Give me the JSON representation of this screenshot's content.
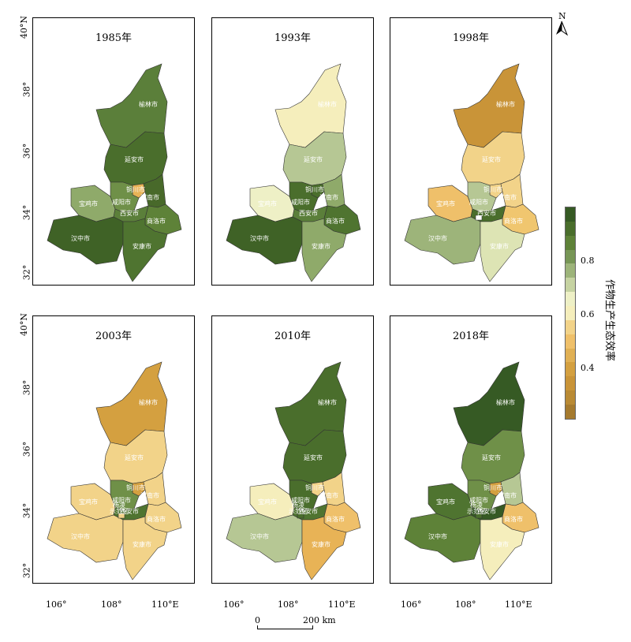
{
  "map": {
    "panels": [
      {
        "title": "1985年",
        "colors": {
          "榆林市": "#5b7f3a",
          "延安市": "#4a6e2c",
          "铜川市": "#e8b356",
          "渭南市": "#48692a",
          "咸阳市": "#6f9048",
          "宝鸡市": "#8faa6a",
          "西安市": "#5b7f3a",
          "商洛市": "#5e8238",
          "汉中市": "#3f6226",
          "安康市": "#4f7430"
        }
      },
      {
        "title": "1993年",
        "colors": {
          "榆林市": "#f5eebc",
          "延安市": "#b6c794",
          "铜川市": "#4a6e2c",
          "渭南市": "#8faa6a",
          "咸阳市": "#4a6e2c",
          "宝鸡市": "#eef0c6",
          "西安市": "#5b7f3a",
          "商洛市": "#4f7430",
          "汉中市": "#3f6226",
          "安康市": "#8faa6a"
        }
      },
      {
        "title": "1998年",
        "colors": {
          "榆林市": "#c99438",
          "延安市": "#f2d389",
          "铜川市": "#f2d389",
          "渭南市": "#f2d389",
          "咸阳市": "#b6c794",
          "宝鸡市": "#efc06a",
          "西安市": "#4a6e2c",
          "商洛市": "#f0c66f",
          "汉中市": "#9db47a",
          "安康市": "#dde4b4",
          "杨凌示范区": "#ffffff"
        }
      },
      {
        "title": "2003年",
        "colors": {
          "榆林市": "#d4a040",
          "延安市": "#f2d389",
          "铜川市": "#d4a040",
          "渭南市": "#f2d389",
          "咸阳市": "#6f9048",
          "宝鸡市": "#f2d389",
          "西安市": "#4f7430",
          "商洛市": "#f2d389",
          "汉中市": "#f2d389",
          "安康市": "#f2d389",
          "杨凌示范区": "#f2d389"
        }
      },
      {
        "title": "2010年",
        "colors": {
          "榆林市": "#4a6e2c",
          "延安市": "#4a6e2c",
          "铜川市": "#f2d389",
          "渭南市": "#f2d389",
          "咸阳市": "#4a6e2c",
          "宝鸡市": "#f5eebc",
          "西安市": "#4f7430",
          "商洛市": "#efc06a",
          "汉中市": "#b6c794",
          "安康市": "#e8b356",
          "杨凌示范区": "#4a6e2c"
        }
      },
      {
        "title": "2018年",
        "colors": {
          "榆林市": "#365a24",
          "延安市": "#6f9048",
          "铜川市": "#d4a040",
          "渭南市": "#b6c794",
          "咸阳市": "#6f9048",
          "宝鸡市": "#4f7430",
          "西安市": "#365a24",
          "商洛市": "#efc06a",
          "汉中市": "#5e8238",
          "安康市": "#f5eebc",
          "杨凌示范区": "#4a6e2c"
        }
      }
    ],
    "lat_ticks": [
      "40°N",
      "38°",
      "36°",
      "34°",
      "32°"
    ],
    "lon_ticks": [
      "106°",
      "108°",
      "110°E"
    ],
    "north_label": "N",
    "scale_bar": {
      "left": "0",
      "right": "200 km"
    },
    "legend": {
      "title": "作物生产生态效率",
      "ticks": [
        "0.8",
        "0.6",
        "0.4"
      ],
      "colors": [
        "#365a24",
        "#4a6e2c",
        "#5e8238",
        "#779656",
        "#9db47a",
        "#c6d3a2",
        "#eef0c6",
        "#f5eebc",
        "#f2d389",
        "#efc06a",
        "#e0b054",
        "#d4a040",
        "#c99438",
        "#b98a34",
        "#a57a2e"
      ]
    }
  }
}
